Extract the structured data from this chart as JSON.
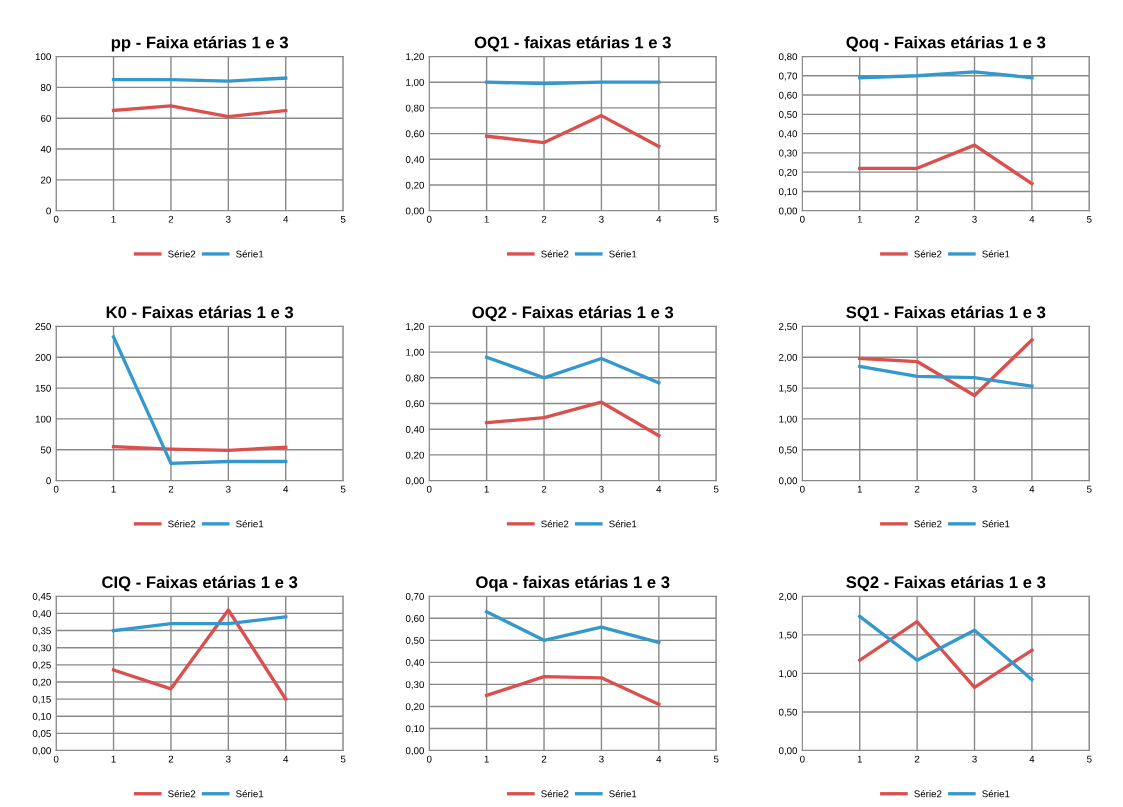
{
  "chart_data": [
    {
      "type": "line",
      "title": "pp - Faixa etárias 1 e 3",
      "x": [
        1,
        2,
        3,
        4
      ],
      "xlim": [
        0,
        5
      ],
      "xticks": [
        0,
        1,
        2,
        3,
        4,
        5
      ],
      "ylim": [
        0,
        100
      ],
      "yticks": [
        0,
        20,
        40,
        60,
        80,
        100
      ],
      "grid": true,
      "legend": "bottom",
      "marker": "none",
      "series": [
        {
          "name": "Série2",
          "color": "#d9504e",
          "values": [
            65,
            68,
            61,
            65
          ]
        },
        {
          "name": "Série1",
          "color": "#3399cc",
          "values": [
            85,
            85,
            84,
            86
          ]
        }
      ]
    },
    {
      "type": "line",
      "title": "OQ1 - faixas etárias 1 e 3",
      "x": [
        1,
        2,
        3,
        4
      ],
      "xlim": [
        0,
        5
      ],
      "xticks": [
        0,
        1,
        2,
        3,
        4,
        5
      ],
      "ylim": [
        0,
        1.2
      ],
      "yticks": [
        {
          "value": 0,
          "label": "0,00"
        },
        {
          "value": 0.2,
          "label": "0,20"
        },
        {
          "value": 0.4,
          "label": "0,40"
        },
        {
          "value": 0.6,
          "label": "0,60"
        },
        {
          "value": 0.8,
          "label": "0,80"
        },
        {
          "value": 1.0,
          "label": "1,00"
        },
        {
          "value": 1.2,
          "label": "1,20"
        }
      ],
      "grid": true,
      "legend": "bottom",
      "marker": "none",
      "series": [
        {
          "name": "Série2",
          "color": "#d9504e",
          "values": [
            0.58,
            0.53,
            0.74,
            0.5
          ]
        },
        {
          "name": "Série1",
          "color": "#3399cc",
          "values": [
            1.0,
            0.99,
            1.0,
            1.0
          ]
        }
      ]
    },
    {
      "type": "line",
      "title": "Qoq - Faixas etárias 1 e 3",
      "x": [
        1,
        2,
        3,
        4
      ],
      "xlim": [
        0,
        5
      ],
      "xticks": [
        0,
        1,
        2,
        3,
        4,
        5
      ],
      "ylim": [
        0,
        0.8
      ],
      "yticks": [
        {
          "value": 0,
          "label": "0,00"
        },
        {
          "value": 0.1,
          "label": "0,10"
        },
        {
          "value": 0.2,
          "label": "0,20"
        },
        {
          "value": 0.3,
          "label": "0,30"
        },
        {
          "value": 0.4,
          "label": "0,40"
        },
        {
          "value": 0.5,
          "label": "0,50"
        },
        {
          "value": 0.6,
          "label": "0,60"
        },
        {
          "value": 0.7,
          "label": "0,70"
        },
        {
          "value": 0.8,
          "label": "0,80"
        }
      ],
      "grid": true,
      "legend": "bottom",
      "marker": "none",
      "series": [
        {
          "name": "Série2",
          "color": "#d9504e",
          "values": [
            0.22,
            0.22,
            0.34,
            0.14
          ]
        },
        {
          "name": "Série1",
          "color": "#3399cc",
          "values": [
            0.69,
            0.7,
            0.72,
            0.69
          ]
        }
      ]
    },
    {
      "type": "line",
      "title": "K0 - Faixas etárias 1 e 3",
      "x": [
        1,
        2,
        3,
        4
      ],
      "xlim": [
        0,
        5
      ],
      "xticks": [
        0,
        1,
        2,
        3,
        4,
        5
      ],
      "ylim": [
        0,
        250
      ],
      "yticks": [
        0,
        50,
        100,
        150,
        200,
        250
      ],
      "grid": true,
      "legend": "bottom",
      "marker": "none",
      "series": [
        {
          "name": "Série2",
          "color": "#d9504e",
          "values": [
            55,
            51,
            49,
            54
          ]
        },
        {
          "name": "Série1",
          "color": "#3399cc",
          "values": [
            233,
            28,
            31,
            31
          ]
        }
      ]
    },
    {
      "type": "line",
      "title": "OQ2 - Faixas etárias 1 e 3",
      "x": [
        1,
        2,
        3,
        4
      ],
      "xlim": [
        0,
        5
      ],
      "xticks": [
        0,
        1,
        2,
        3,
        4,
        5
      ],
      "ylim": [
        0,
        1.2
      ],
      "yticks": [
        {
          "value": 0,
          "label": "0,00"
        },
        {
          "value": 0.2,
          "label": "0,20"
        },
        {
          "value": 0.4,
          "label": "0,40"
        },
        {
          "value": 0.6,
          "label": "0,60"
        },
        {
          "value": 0.8,
          "label": "0,80"
        },
        {
          "value": 1.0,
          "label": "1,00"
        },
        {
          "value": 1.2,
          "label": "1,20"
        }
      ],
      "grid": true,
      "legend": "bottom",
      "marker": "none",
      "series": [
        {
          "name": "Série2",
          "color": "#d9504e",
          "values": [
            0.45,
            0.49,
            0.61,
            0.35
          ]
        },
        {
          "name": "Série1",
          "color": "#3399cc",
          "values": [
            0.96,
            0.8,
            0.95,
            0.76
          ]
        }
      ]
    },
    {
      "type": "line",
      "title": "SQ1 - Faixas etárias 1 e 3",
      "x": [
        1,
        2,
        3,
        4
      ],
      "xlim": [
        0,
        5
      ],
      "xticks": [
        0,
        1,
        2,
        3,
        4,
        5
      ],
      "ylim": [
        0,
        2.5
      ],
      "yticks": [
        {
          "value": 0,
          "label": "0,00"
        },
        {
          "value": 0.5,
          "label": "0,50"
        },
        {
          "value": 1.0,
          "label": "1,00"
        },
        {
          "value": 1.5,
          "label": "1,50"
        },
        {
          "value": 2.0,
          "label": "2,00"
        },
        {
          "value": 2.5,
          "label": "2,50"
        }
      ],
      "grid": true,
      "legend": "bottom",
      "marker": "none",
      "series": [
        {
          "name": "Série2",
          "color": "#d9504e",
          "values": [
            1.98,
            1.93,
            1.38,
            2.28
          ]
        },
        {
          "name": "Série1",
          "color": "#3399cc",
          "values": [
            1.85,
            1.69,
            1.67,
            1.53
          ]
        }
      ]
    },
    {
      "type": "line",
      "title": "CIQ - Faixas etárias 1 e 3",
      "x": [
        1,
        2,
        3,
        4
      ],
      "xlim": [
        0,
        5
      ],
      "xticks": [
        0,
        1,
        2,
        3,
        4,
        5
      ],
      "ylim": [
        0,
        0.45
      ],
      "yticks": [
        {
          "value": 0,
          "label": "0,00"
        },
        {
          "value": 0.05,
          "label": "0,05"
        },
        {
          "value": 0.1,
          "label": "0,10"
        },
        {
          "value": 0.15,
          "label": "0,15"
        },
        {
          "value": 0.2,
          "label": "0,20"
        },
        {
          "value": 0.25,
          "label": "0,25"
        },
        {
          "value": 0.3,
          "label": "0,30"
        },
        {
          "value": 0.35,
          "label": "0,35"
        },
        {
          "value": 0.4,
          "label": "0,40"
        },
        {
          "value": 0.45,
          "label": "0,45"
        }
      ],
      "grid": true,
      "legend": "bottom",
      "marker": "none",
      "series": [
        {
          "name": "Série2",
          "color": "#d9504e",
          "values": [
            0.235,
            0.18,
            0.41,
            0.15
          ]
        },
        {
          "name": "Série1",
          "color": "#3399cc",
          "values": [
            0.35,
            0.37,
            0.37,
            0.39
          ]
        }
      ]
    },
    {
      "type": "line",
      "title": "Oqa - faixas etárias 1 e 3",
      "x": [
        1,
        2,
        3,
        4
      ],
      "xlim": [
        0,
        5
      ],
      "xticks": [
        0,
        1,
        2,
        3,
        4,
        5
      ],
      "ylim": [
        0,
        0.7
      ],
      "yticks": [
        {
          "value": 0,
          "label": "0,00"
        },
        {
          "value": 0.1,
          "label": "0,10"
        },
        {
          "value": 0.2,
          "label": "0,20"
        },
        {
          "value": 0.3,
          "label": "0,30"
        },
        {
          "value": 0.4,
          "label": "0,40"
        },
        {
          "value": 0.5,
          "label": "0,50"
        },
        {
          "value": 0.6,
          "label": "0,60"
        },
        {
          "value": 0.7,
          "label": "0,70"
        }
      ],
      "grid": true,
      "legend": "bottom",
      "marker": "none",
      "series": [
        {
          "name": "Série2",
          "color": "#d9504e",
          "values": [
            0.25,
            0.335,
            0.33,
            0.21
          ]
        },
        {
          "name": "Série1",
          "color": "#3399cc",
          "values": [
            0.63,
            0.5,
            0.56,
            0.49
          ]
        }
      ]
    },
    {
      "type": "line",
      "title": "SQ2 - Faixas etárias 1 e 3",
      "x": [
        1,
        2,
        3,
        4
      ],
      "xlim": [
        0,
        5
      ],
      "xticks": [
        0,
        1,
        2,
        3,
        4,
        5
      ],
      "ylim": [
        0,
        2.0
      ],
      "yticks": [
        {
          "value": 0,
          "label": "0,00"
        },
        {
          "value": 0.5,
          "label": "0,50"
        },
        {
          "value": 1.0,
          "label": "1,00"
        },
        {
          "value": 1.5,
          "label": "1,50"
        },
        {
          "value": 2.0,
          "label": "2,00"
        }
      ],
      "grid": true,
      "legend": "bottom",
      "marker": "none",
      "series": [
        {
          "name": "Série2",
          "color": "#d9504e",
          "values": [
            1.17,
            1.67,
            0.82,
            1.3
          ]
        },
        {
          "name": "Série1",
          "color": "#3399cc",
          "values": [
            1.74,
            1.17,
            1.56,
            0.92
          ]
        }
      ]
    }
  ]
}
